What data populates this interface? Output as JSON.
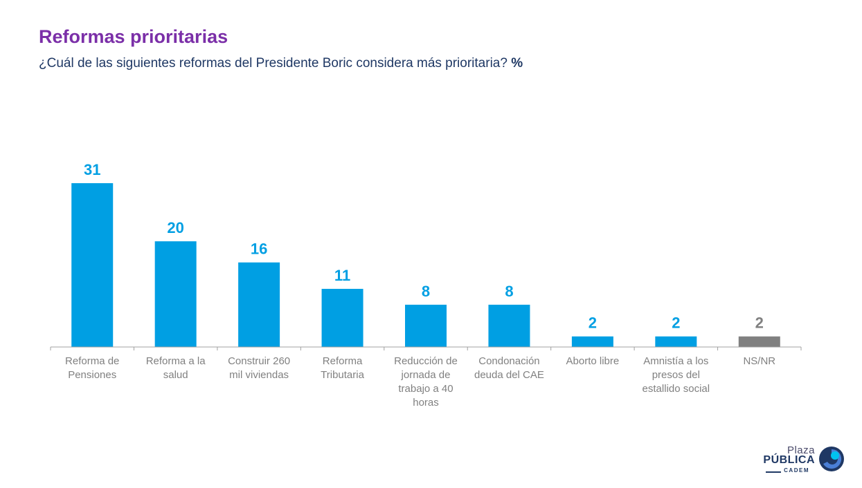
{
  "header": {
    "title": "Reformas prioritarias",
    "subtitle": "¿Cuál de las siguientes reformas del Presidente Boric considera más prioritaria?",
    "unit": "%"
  },
  "colors": {
    "title": "#7b2fa8",
    "subtitle": "#1f3864",
    "bar": "#009fe3",
    "bar_nsnr": "#808080",
    "label_value": "#009fe3",
    "label_value_nsnr": "#808080",
    "axis": "#a0a0a0",
    "category_text": "#808080"
  },
  "chart_data": {
    "type": "bar",
    "categories": [
      [
        "Reforma de",
        "Pensiones"
      ],
      [
        "Reforma a la",
        "salud"
      ],
      [
        "Construir 260",
        "mil viviendas"
      ],
      [
        "Reforma",
        "Tributaria"
      ],
      [
        "Reducción de",
        "jornada de",
        "trabajo a 40",
        "horas"
      ],
      [
        "Condonación",
        "deuda del CAE"
      ],
      [
        "Aborto libre"
      ],
      [
        "Amnistía a los",
        "presos del",
        "estallido social"
      ],
      [
        "NS/NR"
      ]
    ],
    "values": [
      31,
      20,
      16,
      11,
      8,
      8,
      2,
      2,
      2
    ],
    "highlight_gray": [
      8
    ],
    "ylim": [
      0,
      31
    ],
    "grid": false,
    "legend": "none"
  },
  "logo": {
    "line1": "Plaza",
    "line2": "PÚBLICA",
    "line3": "CADEM"
  }
}
